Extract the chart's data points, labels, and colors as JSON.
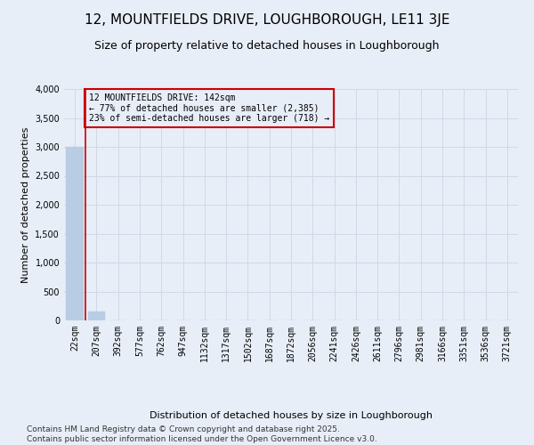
{
  "title": "12, MOUNTFIELDS DRIVE, LOUGHBOROUGH, LE11 3JE",
  "subtitle": "Size of property relative to detached houses in Loughborough",
  "xlabel": "Distribution of detached houses by size in Loughborough",
  "ylabel": "Number of detached properties",
  "categories": [
    "22sqm",
    "207sqm",
    "392sqm",
    "577sqm",
    "762sqm",
    "947sqm",
    "1132sqm",
    "1317sqm",
    "1502sqm",
    "1687sqm",
    "1872sqm",
    "2056sqm",
    "2241sqm",
    "2426sqm",
    "2611sqm",
    "2796sqm",
    "2981sqm",
    "3166sqm",
    "3351sqm",
    "3536sqm",
    "3721sqm"
  ],
  "values": [
    3000,
    150,
    5,
    2,
    1,
    1,
    1,
    0,
    0,
    0,
    0,
    0,
    0,
    0,
    0,
    0,
    0,
    0,
    0,
    0,
    0
  ],
  "bar_color": "#b8cce4",
  "bar_edge_color": "#b8cce4",
  "grid_color": "#d0d8e8",
  "background_color": "#e8eef8",
  "annotation_box_color": "#cc0000",
  "annotation_line_color": "#cc0000",
  "ylim": [
    0,
    4000
  ],
  "yticks": [
    0,
    500,
    1000,
    1500,
    2000,
    2500,
    3000,
    3500,
    4000
  ],
  "annotation_title": "12 MOUNTFIELDS DRIVE: 142sqm",
  "annotation_line1": "← 77% of detached houses are smaller (2,385)",
  "annotation_line2": "23% of semi-detached houses are larger (718) →",
  "footer1": "Contains HM Land Registry data © Crown copyright and database right 2025.",
  "footer2": "Contains public sector information licensed under the Open Government Licence v3.0.",
  "title_fontsize": 11,
  "subtitle_fontsize": 9,
  "axis_label_fontsize": 8,
  "tick_fontsize": 7,
  "annotation_fontsize": 7,
  "footer_fontsize": 6.5
}
